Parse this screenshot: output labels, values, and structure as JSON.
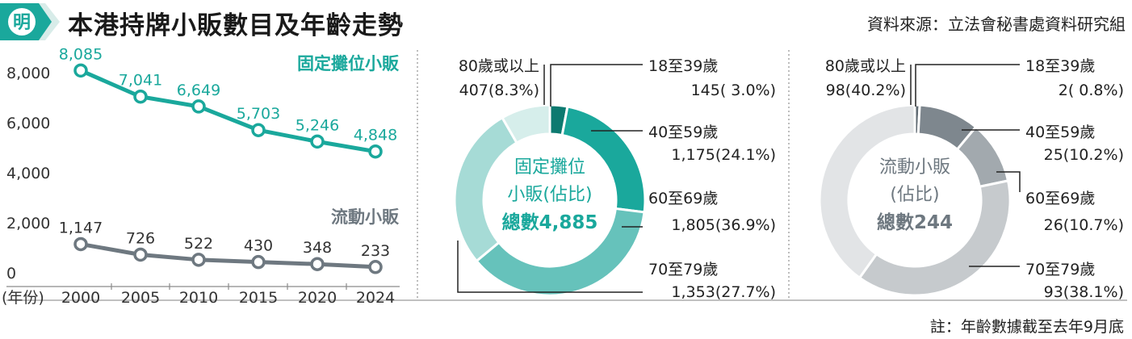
{
  "header": {
    "logo_char": "明",
    "title": "本港持牌小販數目及年齡走勢",
    "source": "資料來源：立法會秘書處資料研究組",
    "footnote": "註：年齡數據截至去年9月底"
  },
  "colors": {
    "fixed": "#1aa89c",
    "mobile": "#6e7880",
    "fixed_dark": "#0d7a70",
    "text": "#222222"
  },
  "chart_data": [
    {
      "type": "line",
      "x": [
        2000,
        2005,
        2010,
        2015,
        2020,
        2024
      ],
      "x_tick_labels": [
        "2000",
        "2005",
        "2010",
        "2015",
        "2020",
        "2024"
      ],
      "x_unit_label": "(年份)",
      "y_tick_labels": [
        "8,000",
        "6,000",
        "4,000",
        "2,000",
        "0"
      ],
      "ylim": [
        0,
        8000
      ],
      "series": [
        {
          "name": "固定攤位小販",
          "values": [
            8085,
            7041,
            6649,
            5703,
            5246,
            4848
          ],
          "labels": [
            "8,085",
            "7,041",
            "6,649",
            "5,703",
            "5,246",
            "4,848"
          ]
        },
        {
          "name": "流動小販",
          "values": [
            1147,
            726,
            522,
            430,
            348,
            233
          ],
          "labels": [
            "1,147",
            "726",
            "522",
            "430",
            "348",
            "233"
          ]
        }
      ]
    },
    {
      "type": "pie",
      "center_label": [
        "固定攤位",
        "小販(佔比)"
      ],
      "total_label": "總數4,885",
      "slices": [
        {
          "category": "18至39歲",
          "value": 145,
          "share": 3.0,
          "value_label": "145(  3.0%)"
        },
        {
          "category": "40至59歲",
          "value": 1175,
          "share": 24.1,
          "value_label": "1,175(24.1%)"
        },
        {
          "category": "60至69歲",
          "value": 1805,
          "share": 36.9,
          "value_label": "1,805(36.9%)"
        },
        {
          "category": "70至79歲",
          "value": 1353,
          "share": 27.7,
          "value_label": "1,353(27.7%)"
        },
        {
          "category": "80歲或以上",
          "value": 407,
          "share": 8.3,
          "value_label": "407(8.3%)"
        }
      ]
    },
    {
      "type": "pie",
      "center_label": [
        "流動小販",
        "(佔比)"
      ],
      "total_label": "總數244",
      "slices": [
        {
          "category": "18至39歲",
          "value": 2,
          "share": 0.8,
          "value_label": "2(  0.8%)"
        },
        {
          "category": "40至59歲",
          "value": 25,
          "share": 10.2,
          "value_label": "25(10.2%)"
        },
        {
          "category": "60至69歲",
          "value": 26,
          "share": 10.7,
          "value_label": "26(10.7%)"
        },
        {
          "category": "70至79歲",
          "value": 93,
          "share": 38.1,
          "value_label": "93(38.1%)"
        },
        {
          "category": "80歲或以上",
          "value": 98,
          "share": 40.2,
          "value_label": "98(40.2%)"
        }
      ]
    }
  ]
}
